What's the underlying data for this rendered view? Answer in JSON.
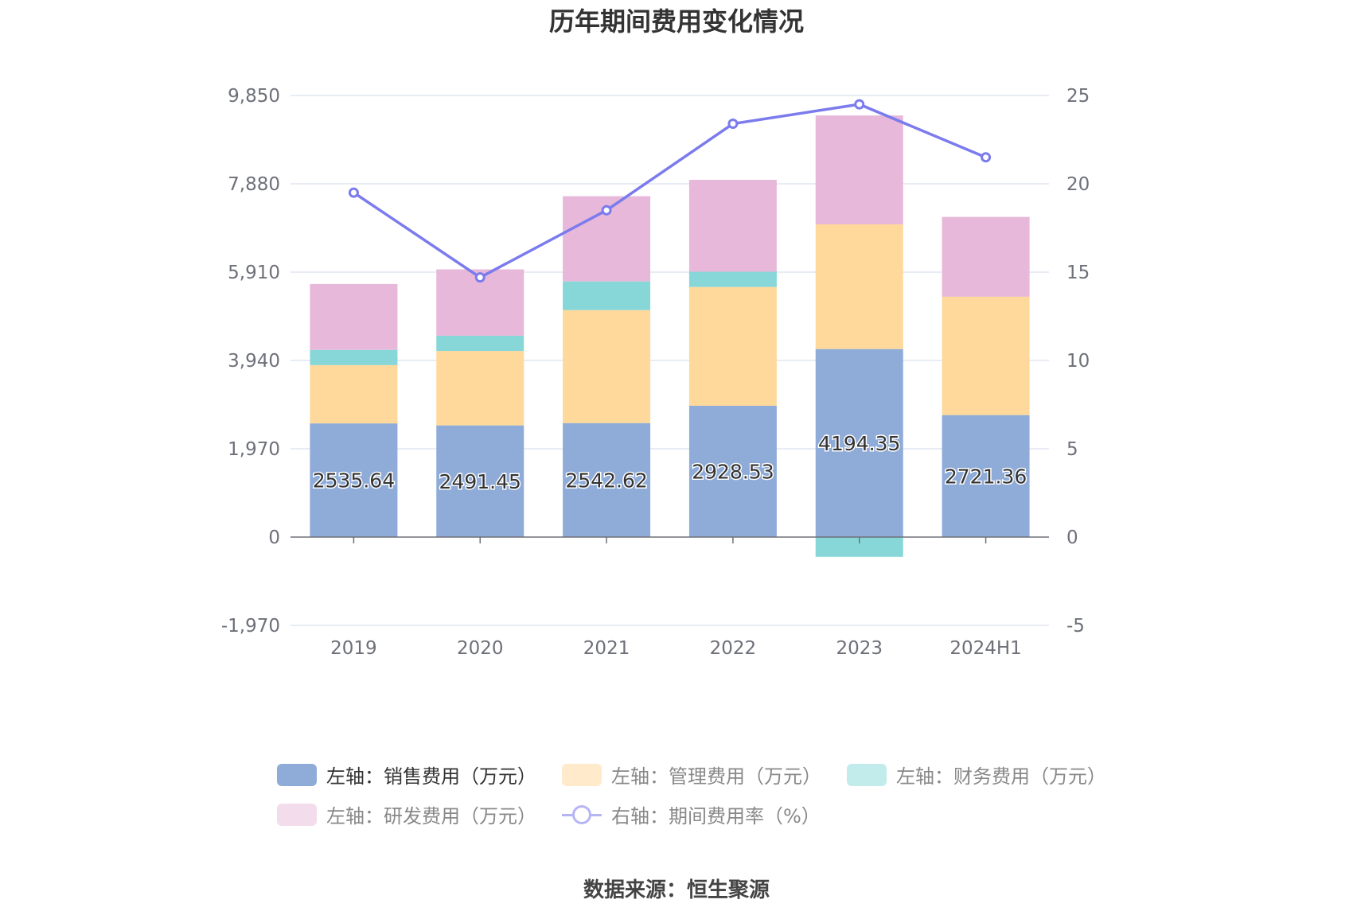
{
  "chart_data": {
    "type": "bar",
    "title": "历年期间费用变化情况",
    "categories": [
      "2019",
      "2020",
      "2021",
      "2022",
      "2023",
      "2024H1"
    ],
    "left_axis": {
      "ticks": [
        "9,850",
        "7,880",
        "5,910",
        "3,940",
        "1,970",
        "0",
        "-1,970"
      ],
      "ylim": [
        -1970,
        9850
      ]
    },
    "right_axis": {
      "ticks": [
        "25",
        "20",
        "15",
        "10",
        "5",
        "0",
        "-5"
      ],
      "ylim": [
        -5,
        25
      ]
    },
    "series": [
      {
        "name": "左轴：销售费用（万元）",
        "type": "bar",
        "color": "#8facd9",
        "values": [
          2535.64,
          2491.45,
          2542.62,
          2928.53,
          4194.35,
          2721.36
        ],
        "labels": [
          "2535.64",
          "2491.45",
          "2542.62",
          "2928.53",
          "4194.35",
          "2721.36"
        ]
      },
      {
        "name": "左轴：管理费用（万元）",
        "type": "bar",
        "color": "#fed99b",
        "values": [
          1300,
          1660,
          2520,
          2650,
          2780,
          2640
        ]
      },
      {
        "name": "左轴：财务费用（万元）",
        "type": "bar",
        "color": "#87d7d8",
        "values": [
          340,
          340,
          640,
          340,
          -440,
          0
        ]
      },
      {
        "name": "左轴：研发费用（万元）",
        "type": "bar",
        "color": "#e7b8d9",
        "values": [
          1470,
          1480,
          1900,
          2050,
          2430,
          1780
        ]
      },
      {
        "name": "右轴：期间费用率（%）",
        "type": "line",
        "color": "#7b7bee",
        "values": [
          19.5,
          14.7,
          18.5,
          23.4,
          24.5,
          21.5
        ]
      }
    ],
    "source": "数据来源：恒生聚源"
  }
}
